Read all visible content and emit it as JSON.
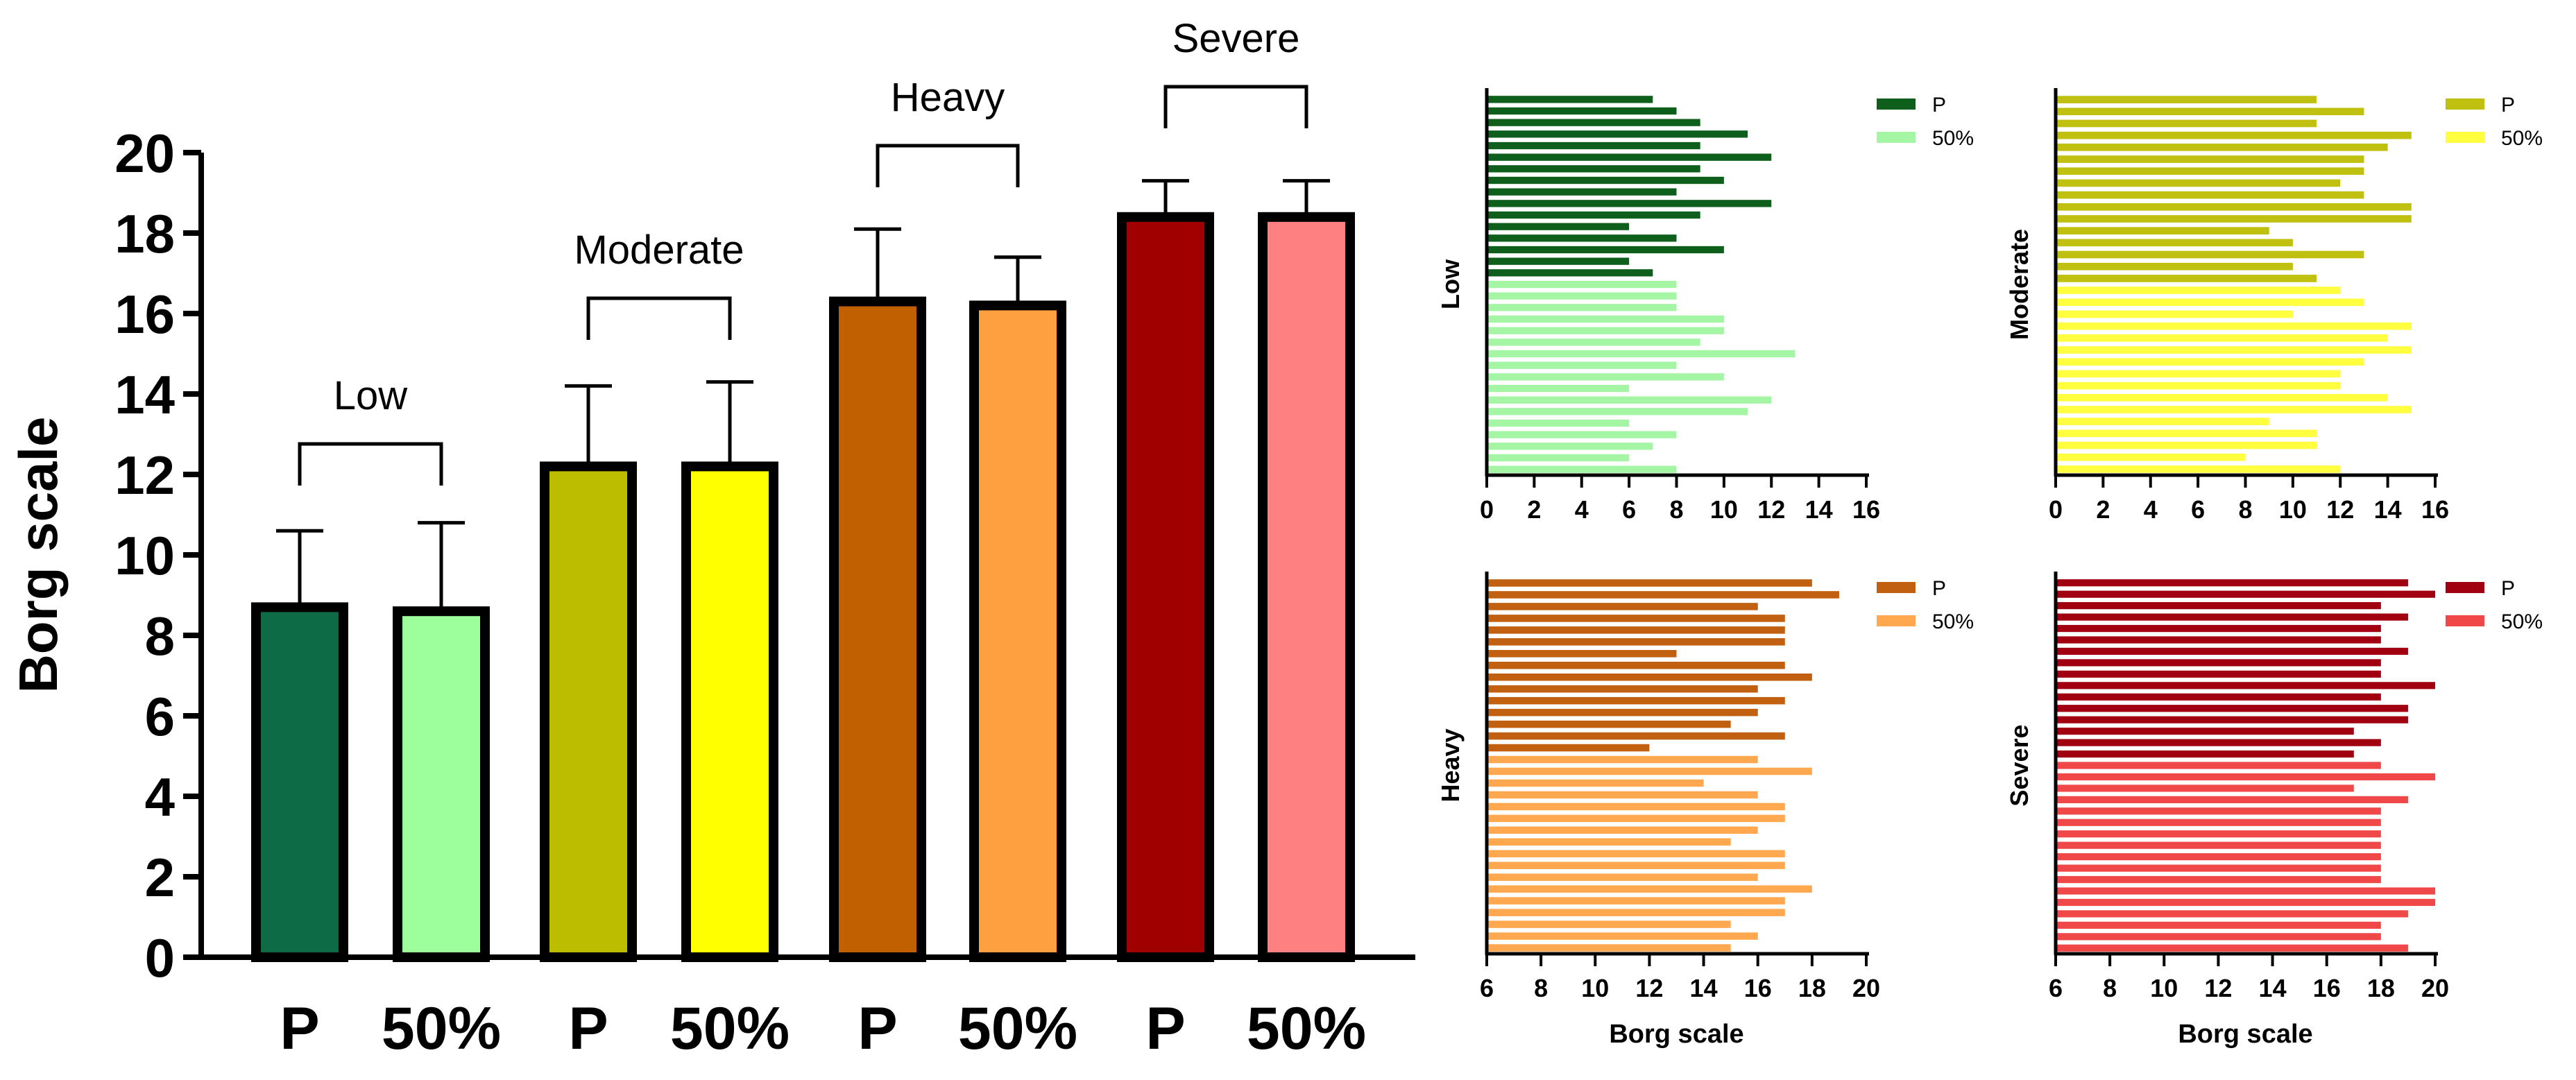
{
  "figure": {
    "colors": {
      "low_p": "#0d6b45",
      "low_50": "#9cff9c",
      "mod_p": "#bdbd00",
      "mod_50": "#ffff00",
      "heavy_p": "#c06000",
      "heavy_50": "#ffa040",
      "severe_p": "#a00000",
      "severe_50": "#ff8080",
      "small_low_p": "#0e5e1c",
      "small_low_50": "#a4f5a4",
      "small_mod_p": "#c0c010",
      "small_mod_50": "#ffff40",
      "small_heavy_p": "#c06010",
      "small_heavy_50": "#ffa850",
      "small_severe_p": "#a00010",
      "small_severe_50": "#f04848"
    }
  },
  "chart_data": [
    {
      "id": "main",
      "type": "bar",
      "ylabel": "Borg scale",
      "ylim": [
        0,
        20
      ],
      "yticks": [
        0,
        2,
        4,
        6,
        8,
        10,
        12,
        14,
        16,
        18,
        20
      ],
      "categories": [
        "P",
        "50%",
        "P",
        "50%",
        "P",
        "50%",
        "P",
        "50%"
      ],
      "values": [
        8.7,
        8.6,
        12.2,
        12.2,
        16.3,
        16.2,
        18.4,
        18.4
      ],
      "errors": [
        1.9,
        2.2,
        2.0,
        2.1,
        1.8,
        1.2,
        0.9,
        0.9
      ],
      "groups": [
        "Low",
        "Moderate",
        "Heavy",
        "Severe"
      ]
    },
    {
      "id": "low",
      "type": "bar",
      "orientation": "horizontal",
      "ylabel": "Low",
      "xlabel": "",
      "xlim": [
        0,
        16
      ],
      "xticks": [
        0,
        2,
        4,
        6,
        8,
        10,
        12,
        14,
        16
      ],
      "legend": [
        "P",
        "50%"
      ],
      "series": [
        {
          "name": "P",
          "values": [
            7,
            8,
            9,
            11,
            9,
            12,
            9,
            10,
            8,
            12,
            9,
            6,
            8,
            10,
            6,
            7
          ]
        },
        {
          "name": "50%",
          "values": [
            8,
            8,
            8,
            10,
            10,
            9,
            13,
            8,
            10,
            6,
            12,
            11,
            6,
            8,
            7,
            6,
            8
          ]
        }
      ]
    },
    {
      "id": "moderate",
      "type": "bar",
      "orientation": "horizontal",
      "ylabel": "Moderate",
      "xlabel": "",
      "xlim": [
        0,
        16
      ],
      "xticks": [
        0,
        2,
        4,
        6,
        8,
        10,
        12,
        14,
        16
      ],
      "legend": [
        "P",
        "50%"
      ],
      "series": [
        {
          "name": "P",
          "values": [
            11,
            13,
            11,
            15,
            14,
            13,
            13,
            12,
            13,
            15,
            15,
            9,
            10,
            13,
            10,
            11
          ]
        },
        {
          "name": "50%",
          "values": [
            12,
            13,
            10,
            15,
            14,
            15,
            13,
            12,
            12,
            14,
            15,
            9,
            11,
            11,
            8,
            12
          ]
        }
      ]
    },
    {
      "id": "heavy",
      "type": "bar",
      "orientation": "horizontal",
      "ylabel": "Heavy",
      "xlabel": "Borg scale",
      "xlim": [
        6,
        20
      ],
      "xticks": [
        6,
        8,
        10,
        12,
        14,
        16,
        18,
        20
      ],
      "legend": [
        "P",
        "50%"
      ],
      "series": [
        {
          "name": "P",
          "values": [
            18,
            19,
            16,
            17,
            17,
            17,
            13,
            17,
            18,
            16,
            17,
            16,
            15,
            17,
            12
          ]
        },
        {
          "name": "50%",
          "values": [
            16,
            18,
            14,
            16,
            17,
            17,
            16,
            15,
            17,
            17,
            16,
            18,
            17,
            17,
            15,
            16,
            15
          ]
        }
      ]
    },
    {
      "id": "severe",
      "type": "bar",
      "orientation": "horizontal",
      "ylabel": "Severe",
      "xlabel": "Borg scale",
      "xlim": [
        6,
        20
      ],
      "xticks": [
        6,
        8,
        10,
        12,
        14,
        16,
        18,
        20
      ],
      "legend": [
        "P",
        "50%"
      ],
      "series": [
        {
          "name": "P",
          "values": [
            19,
            20,
            18,
            19,
            18,
            18,
            19,
            18,
            18,
            20,
            18,
            19,
            19,
            17,
            18,
            17
          ]
        },
        {
          "name": "50%",
          "values": [
            18,
            20,
            17,
            19,
            18,
            18,
            18,
            18,
            18,
            18,
            18,
            20,
            20,
            19,
            18,
            18,
            19
          ]
        }
      ]
    }
  ]
}
